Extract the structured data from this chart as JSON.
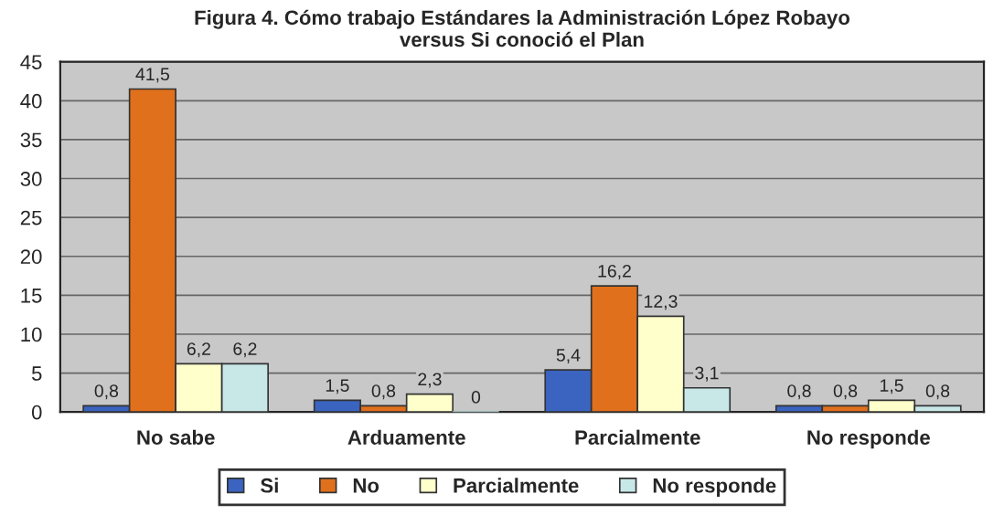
{
  "chart_data": {
    "type": "bar",
    "title": "Figura 4. Cómo trabajo Estándares la Administración López Robayo\nversus Si conoció el Plan",
    "categories": [
      "No sabe",
      "Arduamente",
      "Parcialmente",
      "No responde"
    ],
    "series": [
      {
        "name": "Si",
        "color": "#3a64c0",
        "values": [
          0.8,
          1.5,
          5.4,
          0.8
        ],
        "value_labels": [
          "0,8",
          "1,5",
          "5,4",
          "0,8"
        ]
      },
      {
        "name": "No",
        "color": "#e0701c",
        "values": [
          41.5,
          0.8,
          16.2,
          0.8
        ],
        "value_labels": [
          "41,5",
          "0,8",
          "16,2",
          "0,8"
        ]
      },
      {
        "name": "Parcialmente",
        "color": "#ffffcc",
        "values": [
          6.2,
          2.3,
          12.3,
          1.5
        ],
        "value_labels": [
          "6,2",
          "2,3",
          "12,3",
          "1,5"
        ]
      },
      {
        "name": "No responde",
        "color": "#c8e8e8",
        "values": [
          6.2,
          0,
          3.1,
          0.8
        ],
        "value_labels": [
          "6,2",
          "0",
          "3,1",
          "0,8"
        ]
      }
    ],
    "ylim": [
      0,
      45
    ],
    "yticks": [
      0,
      5,
      10,
      15,
      20,
      25,
      30,
      35,
      40,
      45
    ],
    "grid": "y",
    "legend": "bottom"
  }
}
